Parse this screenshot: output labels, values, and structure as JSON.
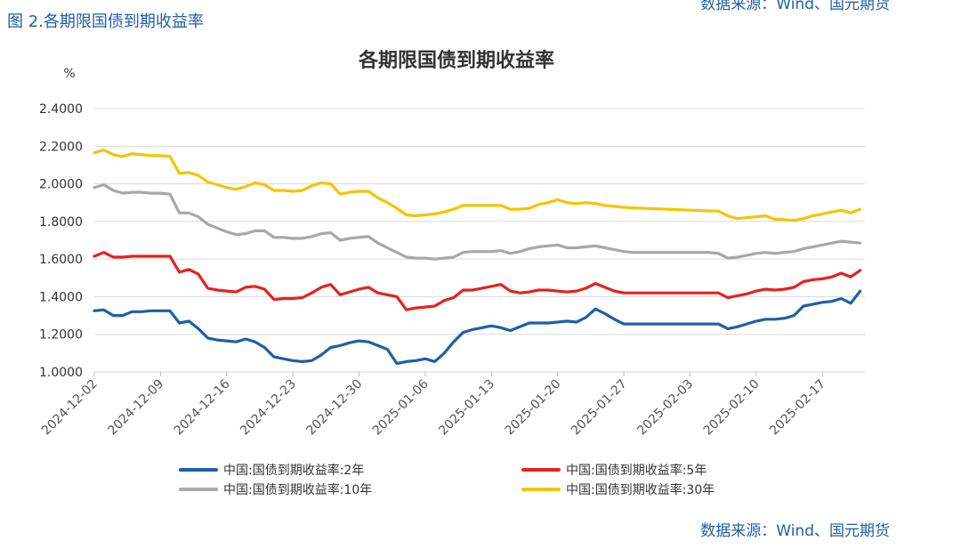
{
  "figure_label": "图 2.各期限国债到期收益率",
  "top_source": "数据来源：Wind、国元期货",
  "source": "数据来源：Wind、国元期货",
  "chart_data": {
    "type": "line",
    "title": "各期限国债到期收益率",
    "ylabel": "%",
    "ylim": [
      1.0,
      2.4
    ],
    "yticks": [
      "1.0000",
      "1.2000",
      "1.4000",
      "1.6000",
      "1.8000",
      "2.0000",
      "2.2000",
      "2.4000"
    ],
    "ytick_values": [
      1.0,
      1.2,
      1.4,
      1.6,
      1.8,
      2.0,
      2.2,
      2.4
    ],
    "xticks": [
      "2024-12-02",
      "2024-12-09",
      "2024-12-16",
      "2024-12-23",
      "2024-12-30",
      "2025-01-06",
      "2025-01-13",
      "2025-01-20",
      "2025-01-27",
      "2025-02-03",
      "2025-02-10",
      "2025-02-17"
    ],
    "xtick_days": [
      0,
      7,
      14,
      21,
      28,
      35,
      42,
      49,
      56,
      63,
      70,
      77
    ],
    "xlim_days": [
      0,
      81.5
    ],
    "grid": true,
    "series": [
      {
        "name": "中国:国债到期收益率:2年",
        "color": "#1f5fa8",
        "x": [
          0,
          1,
          2,
          3,
          4,
          5,
          6,
          7,
          8,
          9,
          10,
          11,
          12,
          13,
          14,
          15,
          16,
          17,
          18,
          19,
          20,
          21,
          22,
          23,
          24,
          25,
          26,
          27,
          28,
          29,
          30,
          31,
          32,
          33,
          34,
          35,
          36,
          37,
          38,
          39,
          40,
          41,
          42,
          43,
          44,
          45,
          46,
          47,
          48,
          49,
          50,
          51,
          52,
          53,
          54,
          55,
          56,
          57,
          58,
          59,
          60,
          61,
          62,
          63,
          64,
          65,
          66,
          67,
          68,
          69,
          70,
          71,
          72,
          73,
          74,
          75,
          76,
          77,
          78,
          79,
          80,
          81
        ],
        "values": [
          1.325,
          1.33,
          1.3,
          1.3,
          1.32,
          1.32,
          1.325,
          1.325,
          1.325,
          1.26,
          1.27,
          1.23,
          1.18,
          1.17,
          1.165,
          1.16,
          1.175,
          1.16,
          1.13,
          1.08,
          1.07,
          1.06,
          1.055,
          1.06,
          1.09,
          1.13,
          1.14,
          1.155,
          1.165,
          1.16,
          1.14,
          1.12,
          1.045,
          1.055,
          1.06,
          1.07,
          1.055,
          1.1,
          1.16,
          1.21,
          1.225,
          1.235,
          1.245,
          1.235,
          1.22,
          1.24,
          1.26,
          1.26,
          1.26,
          1.265,
          1.27,
          1.265,
          1.29,
          1.335,
          1.31,
          1.28,
          1.255,
          1.255,
          1.255,
          1.255,
          1.255,
          1.255,
          1.255,
          1.255,
          1.255,
          1.255,
          1.255,
          1.23,
          1.24,
          1.255,
          1.27,
          1.28,
          1.28,
          1.285,
          1.3,
          1.35,
          1.36,
          1.37,
          1.375,
          1.39,
          1.365,
          1.43
        ]
      },
      {
        "name": "中国:国债到期收益率:5年",
        "color": "#e4231f",
        "x": [
          0,
          1,
          2,
          3,
          4,
          5,
          6,
          7,
          8,
          9,
          10,
          11,
          12,
          13,
          14,
          15,
          16,
          17,
          18,
          19,
          20,
          21,
          22,
          23,
          24,
          25,
          26,
          27,
          28,
          29,
          30,
          31,
          32,
          33,
          34,
          35,
          36,
          37,
          38,
          39,
          40,
          41,
          42,
          43,
          44,
          45,
          46,
          47,
          48,
          49,
          50,
          51,
          52,
          53,
          54,
          55,
          56,
          57,
          58,
          59,
          60,
          61,
          62,
          63,
          64,
          65,
          66,
          67,
          68,
          69,
          70,
          71,
          72,
          73,
          74,
          75,
          76,
          77,
          78,
          79,
          80,
          81
        ],
        "values": [
          1.615,
          1.635,
          1.61,
          1.61,
          1.615,
          1.615,
          1.615,
          1.615,
          1.615,
          1.53,
          1.545,
          1.52,
          1.445,
          1.435,
          1.43,
          1.425,
          1.45,
          1.455,
          1.44,
          1.385,
          1.39,
          1.39,
          1.395,
          1.42,
          1.45,
          1.465,
          1.41,
          1.425,
          1.44,
          1.45,
          1.42,
          1.41,
          1.4,
          1.33,
          1.34,
          1.345,
          1.35,
          1.38,
          1.395,
          1.435,
          1.435,
          1.445,
          1.455,
          1.465,
          1.43,
          1.42,
          1.425,
          1.435,
          1.435,
          1.43,
          1.425,
          1.43,
          1.445,
          1.47,
          1.45,
          1.43,
          1.42,
          1.42,
          1.42,
          1.42,
          1.42,
          1.42,
          1.42,
          1.42,
          1.42,
          1.42,
          1.42,
          1.395,
          1.405,
          1.415,
          1.43,
          1.44,
          1.435,
          1.44,
          1.45,
          1.48,
          1.49,
          1.495,
          1.505,
          1.525,
          1.505,
          1.54
        ]
      },
      {
        "name": "中国:国债到期收益率:10年",
        "color": "#a8a8a8",
        "x": [
          0,
          1,
          2,
          3,
          4,
          5,
          6,
          7,
          8,
          9,
          10,
          11,
          12,
          13,
          14,
          15,
          16,
          17,
          18,
          19,
          20,
          21,
          22,
          23,
          24,
          25,
          26,
          27,
          28,
          29,
          30,
          31,
          32,
          33,
          34,
          35,
          36,
          37,
          38,
          39,
          40,
          41,
          42,
          43,
          44,
          45,
          46,
          47,
          48,
          49,
          50,
          51,
          52,
          53,
          54,
          55,
          56,
          57,
          58,
          59,
          60,
          61,
          62,
          63,
          64,
          65,
          66,
          67,
          68,
          69,
          70,
          71,
          72,
          73,
          74,
          75,
          76,
          77,
          78,
          79,
          80,
          81
        ],
        "values": [
          1.98,
          1.995,
          1.965,
          1.95,
          1.955,
          1.955,
          1.95,
          1.95,
          1.945,
          1.845,
          1.845,
          1.825,
          1.785,
          1.765,
          1.745,
          1.73,
          1.735,
          1.75,
          1.75,
          1.715,
          1.715,
          1.71,
          1.71,
          1.72,
          1.735,
          1.74,
          1.7,
          1.71,
          1.715,
          1.72,
          1.685,
          1.66,
          1.635,
          1.61,
          1.605,
          1.605,
          1.6,
          1.605,
          1.61,
          1.635,
          1.64,
          1.64,
          1.64,
          1.645,
          1.63,
          1.64,
          1.655,
          1.665,
          1.67,
          1.675,
          1.66,
          1.66,
          1.665,
          1.67,
          1.66,
          1.65,
          1.64,
          1.635,
          1.635,
          1.635,
          1.635,
          1.635,
          1.635,
          1.635,
          1.635,
          1.635,
          1.63,
          1.605,
          1.61,
          1.62,
          1.63,
          1.635,
          1.63,
          1.635,
          1.64,
          1.655,
          1.665,
          1.675,
          1.685,
          1.695,
          1.69,
          1.685
        ]
      },
      {
        "name": "中国:国债到期收益率:30年",
        "color": "#f5c400",
        "x": [
          0,
          1,
          2,
          3,
          4,
          5,
          6,
          7,
          8,
          9,
          10,
          11,
          12,
          13,
          14,
          15,
          16,
          17,
          18,
          19,
          20,
          21,
          22,
          23,
          24,
          25,
          26,
          27,
          28,
          29,
          30,
          31,
          32,
          33,
          34,
          35,
          36,
          37,
          38,
          39,
          40,
          41,
          42,
          43,
          44,
          45,
          46,
          47,
          48,
          49,
          50,
          51,
          52,
          53,
          54,
          55,
          56,
          57,
          58,
          59,
          60,
          61,
          62,
          63,
          64,
          65,
          66,
          67,
          68,
          69,
          70,
          71,
          72,
          73,
          74,
          75,
          76,
          77,
          78,
          79,
          80,
          81
        ],
        "values": [
          2.165,
          2.18,
          2.155,
          2.145,
          2.16,
          2.155,
          2.15,
          2.15,
          2.145,
          2.055,
          2.06,
          2.045,
          2.01,
          1.995,
          1.98,
          1.97,
          1.985,
          2.005,
          1.995,
          1.965,
          1.965,
          1.96,
          1.965,
          1.99,
          2.005,
          2.0,
          1.945,
          1.955,
          1.96,
          1.96,
          1.925,
          1.9,
          1.87,
          1.835,
          1.83,
          1.835,
          1.84,
          1.85,
          1.865,
          1.885,
          1.885,
          1.885,
          1.885,
          1.885,
          1.865,
          1.865,
          1.87,
          1.89,
          1.9,
          1.915,
          1.9,
          1.895,
          1.9,
          1.895,
          1.885,
          1.88,
          1.875,
          1.872,
          1.87,
          1.868,
          1.866,
          1.864,
          1.862,
          1.86,
          1.858,
          1.856,
          1.855,
          1.83,
          1.815,
          1.82,
          1.825,
          1.83,
          1.81,
          1.81,
          1.805,
          1.815,
          1.83,
          1.84,
          1.85,
          1.86,
          1.845,
          1.865
        ]
      }
    ]
  }
}
